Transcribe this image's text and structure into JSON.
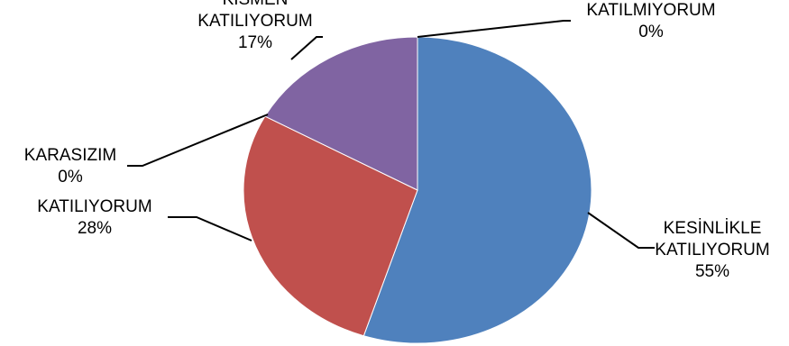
{
  "chart_data": {
    "type": "pie",
    "title": "",
    "slices": [
      {
        "name": "KESİNLİKLE KATILIYORUM",
        "label_lines": [
          "KESİNLİKLE",
          "KATILIYORUM"
        ],
        "percent_label": "55%",
        "value": 55,
        "color": "#4F81BD"
      },
      {
        "name": "KATILIYORUM",
        "label_lines": [
          "KATILIYORUM"
        ],
        "percent_label": "28%",
        "value": 28,
        "color": "#C0504D"
      },
      {
        "name": "KARASIZIM",
        "label_lines": [
          "KARASIZIM"
        ],
        "percent_label": "0%",
        "value": 0,
        "color": "#9BBB59"
      },
      {
        "name": "KISMEN KATILIYORUM",
        "label_lines": [
          "KISMEN",
          "KATILIYORUM"
        ],
        "percent_label": "17%",
        "value": 17,
        "color": "#8064A2"
      },
      {
        "name": "KATILMIYORUM",
        "label_lines": [
          "KATILMIYORUM"
        ],
        "percent_label": "0%",
        "value": 0,
        "color": "#4BACC6"
      }
    ],
    "start": "12 o'clock",
    "direction": "clockwise",
    "legend": "none",
    "data_labels": "outside with leader lines"
  }
}
